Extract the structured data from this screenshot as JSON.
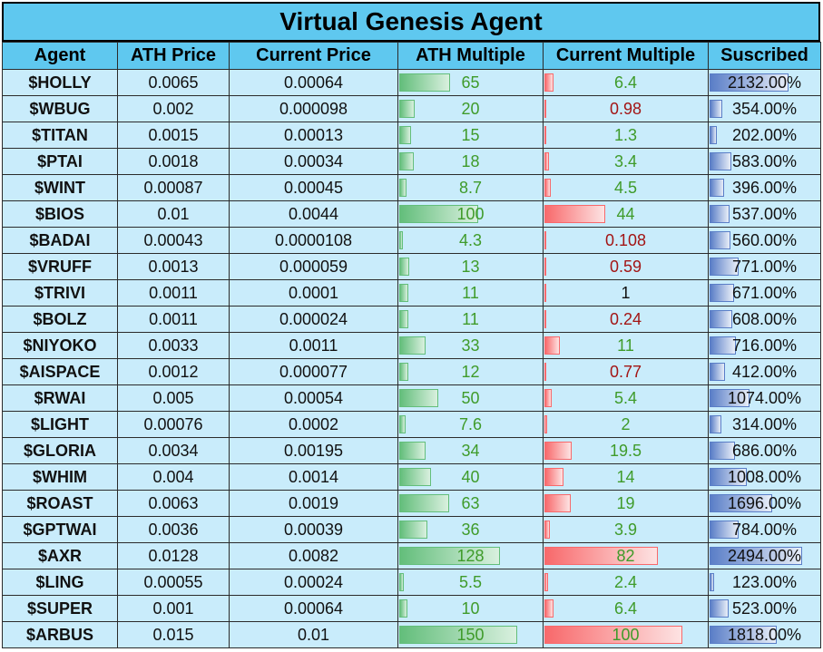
{
  "title": "Virtual Genesis Agent",
  "headers": [
    "Agent",
    "ATH Price",
    "Current Price",
    "ATH Multiple",
    "Current Multiple",
    "Suscribed"
  ],
  "colors": {
    "header": "#5fc8ef",
    "row": "#c9ecfb",
    "ath_bar": "#63be7b",
    "current_bar": "#f8696b",
    "sub_bar": "#5a7ec7",
    "green_text": "#3f9b2a",
    "red_text": "#a31515"
  },
  "rows": [
    {
      "agent": "$HOLLY",
      "ath_price": "0.0065",
      "current_price": "0.00064",
      "ath_multiple": "65",
      "current_multiple": "6.4",
      "subscribed": "2132.00%",
      "ath_m": 65,
      "cur_m": 6.4,
      "sub": 2132,
      "cur_color": "green"
    },
    {
      "agent": "$WBUG",
      "ath_price": "0.002",
      "current_price": "0.000098",
      "ath_multiple": "20",
      "current_multiple": "0.98",
      "subscribed": "354.00%",
      "ath_m": 20,
      "cur_m": 0.98,
      "sub": 354,
      "cur_color": "red"
    },
    {
      "agent": "$TITAN",
      "ath_price": "0.0015",
      "current_price": "0.00013",
      "ath_multiple": "15",
      "current_multiple": "1.3",
      "subscribed": "202.00%",
      "ath_m": 15,
      "cur_m": 1.3,
      "sub": 202,
      "cur_color": "green"
    },
    {
      "agent": "$PTAI",
      "ath_price": "0.0018",
      "current_price": "0.00034",
      "ath_multiple": "18",
      "current_multiple": "3.4",
      "subscribed": "583.00%",
      "ath_m": 18,
      "cur_m": 3.4,
      "sub": 583,
      "cur_color": "green"
    },
    {
      "agent": "$WINT",
      "ath_price": "0.00087",
      "current_price": "0.00045",
      "ath_multiple": "8.7",
      "current_multiple": "4.5",
      "subscribed": "396.00%",
      "ath_m": 8.7,
      "cur_m": 4.5,
      "sub": 396,
      "cur_color": "green"
    },
    {
      "agent": "$BIOS",
      "ath_price": "0.01",
      "current_price": "0.0044",
      "ath_multiple": "100",
      "current_multiple": "44",
      "subscribed": "537.00%",
      "ath_m": 100,
      "cur_m": 44,
      "sub": 537,
      "cur_color": "green"
    },
    {
      "agent": "$BADAI",
      "ath_price": "0.00043",
      "current_price": "0.0000108",
      "ath_multiple": "4.3",
      "current_multiple": "0.108",
      "subscribed": "560.00%",
      "ath_m": 4.3,
      "cur_m": 0.108,
      "sub": 560,
      "cur_color": "red"
    },
    {
      "agent": "$VRUFF",
      "ath_price": "0.0013",
      "current_price": "0.000059",
      "ath_multiple": "13",
      "current_multiple": "0.59",
      "subscribed": "771.00%",
      "ath_m": 13,
      "cur_m": 0.59,
      "sub": 771,
      "cur_color": "red"
    },
    {
      "agent": "$TRIVI",
      "ath_price": "0.0011",
      "current_price": "0.0001",
      "ath_multiple": "11",
      "current_multiple": "1",
      "subscribed": "671.00%",
      "ath_m": 11,
      "cur_m": 1,
      "sub": 671,
      "cur_color": "black"
    },
    {
      "agent": "$BOLZ",
      "ath_price": "0.0011",
      "current_price": "0.000024",
      "ath_multiple": "11",
      "current_multiple": "0.24",
      "subscribed": "608.00%",
      "ath_m": 11,
      "cur_m": 0.24,
      "sub": 608,
      "cur_color": "red"
    },
    {
      "agent": "$NIYOKO",
      "ath_price": "0.0033",
      "current_price": "0.0011",
      "ath_multiple": "33",
      "current_multiple": "11",
      "subscribed": "716.00%",
      "ath_m": 33,
      "cur_m": 11,
      "sub": 716,
      "cur_color": "green"
    },
    {
      "agent": "$AISPACE",
      "ath_price": "0.0012",
      "current_price": "0.000077",
      "ath_multiple": "12",
      "current_multiple": "0.77",
      "subscribed": "412.00%",
      "ath_m": 12,
      "cur_m": 0.77,
      "sub": 412,
      "cur_color": "red"
    },
    {
      "agent": "$RWAI",
      "ath_price": "0.005",
      "current_price": "0.00054",
      "ath_multiple": "50",
      "current_multiple": "5.4",
      "subscribed": "1074.00%",
      "ath_m": 50,
      "cur_m": 5.4,
      "sub": 1074,
      "cur_color": "green"
    },
    {
      "agent": "$LIGHT",
      "ath_price": "0.00076",
      "current_price": "0.0002",
      "ath_multiple": "7.6",
      "current_multiple": "2",
      "subscribed": "314.00%",
      "ath_m": 7.6,
      "cur_m": 2,
      "sub": 314,
      "cur_color": "green"
    },
    {
      "agent": "$GLORIA",
      "ath_price": "0.0034",
      "current_price": "0.00195",
      "ath_multiple": "34",
      "current_multiple": "19.5",
      "subscribed": "686.00%",
      "ath_m": 34,
      "cur_m": 19.5,
      "sub": 686,
      "cur_color": "green"
    },
    {
      "agent": "$WHIM",
      "ath_price": "0.004",
      "current_price": "0.0014",
      "ath_multiple": "40",
      "current_multiple": "14",
      "subscribed": "1008.00%",
      "ath_m": 40,
      "cur_m": 14,
      "sub": 1008,
      "cur_color": "green"
    },
    {
      "agent": "$ROAST",
      "ath_price": "0.0063",
      "current_price": "0.0019",
      "ath_multiple": "63",
      "current_multiple": "19",
      "subscribed": "1696.00%",
      "ath_m": 63,
      "cur_m": 19,
      "sub": 1696,
      "cur_color": "green"
    },
    {
      "agent": "$GPTWAI",
      "ath_price": "0.0036",
      "current_price": "0.00039",
      "ath_multiple": "36",
      "current_multiple": "3.9",
      "subscribed": "784.00%",
      "ath_m": 36,
      "cur_m": 3.9,
      "sub": 784,
      "cur_color": "green"
    },
    {
      "agent": "$AXR",
      "ath_price": "0.0128",
      "current_price": "0.0082",
      "ath_multiple": "128",
      "current_multiple": "82",
      "subscribed": "2494.00%",
      "ath_m": 128,
      "cur_m": 82,
      "sub": 2494,
      "cur_color": "green"
    },
    {
      "agent": "$LING",
      "ath_price": "0.00055",
      "current_price": "0.00024",
      "ath_multiple": "5.5",
      "current_multiple": "2.4",
      "subscribed": "123.00%",
      "ath_m": 5.5,
      "cur_m": 2.4,
      "sub": 123,
      "cur_color": "green"
    },
    {
      "agent": "$SUPER",
      "ath_price": "0.001",
      "current_price": "0.00064",
      "ath_multiple": "10",
      "current_multiple": "6.4",
      "subscribed": "523.00%",
      "ath_m": 10,
      "cur_m": 6.4,
      "sub": 523,
      "cur_color": "green"
    },
    {
      "agent": "$ARBUS",
      "ath_price": "0.015",
      "current_price": "0.01",
      "ath_multiple": "150",
      "current_multiple": "100",
      "subscribed": "1818.00%",
      "ath_m": 150,
      "cur_m": 100,
      "sub": 1818,
      "cur_color": "green"
    }
  ]
}
